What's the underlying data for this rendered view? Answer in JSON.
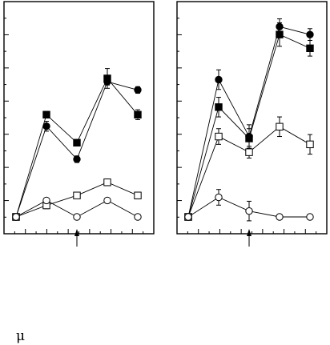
{
  "chart_data": [
    {
      "type": "line",
      "panel": "left",
      "x": [
        0,
        1,
        2,
        3,
        4
      ],
      "ylim": [
        0,
        1
      ],
      "grid": false,
      "arrow_at_x": 2,
      "series": [
        {
          "marker": "filled-circle",
          "values": [
            0.0,
            0.55,
            0.35,
            0.82,
            0.77
          ],
          "err": [
            0,
            0.03,
            0.02,
            0.02,
            0.02
          ]
        },
        {
          "marker": "filled-square",
          "values": [
            0.0,
            0.62,
            0.45,
            0.84,
            0.62
          ],
          "err": [
            0,
            0.02,
            0.02,
            0.06,
            0.03
          ]
        },
        {
          "marker": "open-square",
          "values": [
            0.0,
            0.07,
            0.13,
            0.21,
            0.13
          ],
          "err": [
            0,
            0.02,
            0.01,
            0.02,
            0.02
          ]
        },
        {
          "marker": "open-circle",
          "values": [
            0.0,
            0.1,
            0.0,
            0.1,
            0.0
          ],
          "err": [
            0,
            0.01,
            0,
            0,
            0
          ]
        }
      ]
    },
    {
      "type": "line",
      "panel": "right",
      "x": [
        0,
        1,
        2,
        3,
        4
      ],
      "ylim": [
        0,
        1
      ],
      "grid": false,
      "arrow_at_x": 2,
      "series": [
        {
          "marker": "filled-circle",
          "values": [
            0.0,
            0.7,
            0.41,
            0.97,
            0.93
          ],
          "err": [
            0,
            0.05,
            0.06,
            0.04,
            0.03
          ]
        },
        {
          "marker": "filled-square",
          "values": [
            0.0,
            0.56,
            0.4,
            0.93,
            0.86
          ],
          "err": [
            0,
            0.05,
            0.05,
            0.06,
            0.04
          ]
        },
        {
          "marker": "open-square",
          "values": [
            0.0,
            0.41,
            0.33,
            0.46,
            0.37
          ],
          "err": [
            0,
            0.04,
            0.03,
            0.05,
            0.05
          ]
        },
        {
          "marker": "open-circle",
          "values": [
            0.0,
            0.1,
            0.03,
            0.0,
            0.0
          ],
          "err": [
            0,
            0.04,
            0.05,
            0,
            0
          ]
        }
      ]
    }
  ],
  "footer": {
    "mu_symbol": "μ"
  }
}
